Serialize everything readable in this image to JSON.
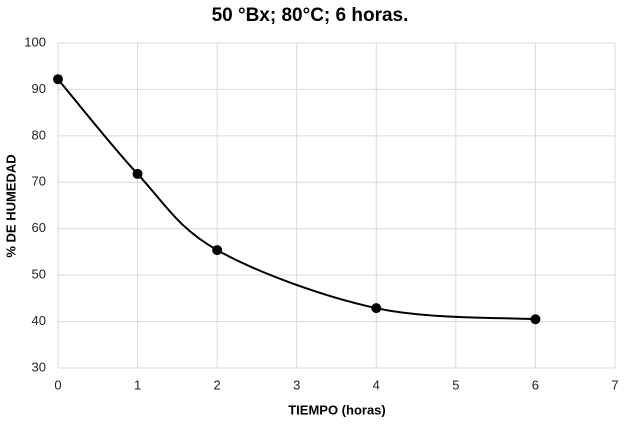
{
  "chart_data": {
    "type": "line",
    "title": "50 °Bx; 80°C; 6 horas.",
    "x_label": "TIEMPO (horas)",
    "y_label": "% DE HUMEDAD",
    "x": [
      0,
      1,
      2,
      4,
      6
    ],
    "values": [
      92.2,
      71.8,
      55.4,
      42.9,
      40.5
    ],
    "color": "#000000",
    "smooth": true,
    "markers": true,
    "xlim": [
      0,
      7
    ],
    "xticks": [
      0,
      1,
      2,
      3,
      4,
      5,
      6,
      7
    ],
    "ylim": [
      30,
      100
    ],
    "yticks": [
      30,
      40,
      50,
      60,
      70,
      80,
      90,
      100
    ],
    "grid": true
  }
}
